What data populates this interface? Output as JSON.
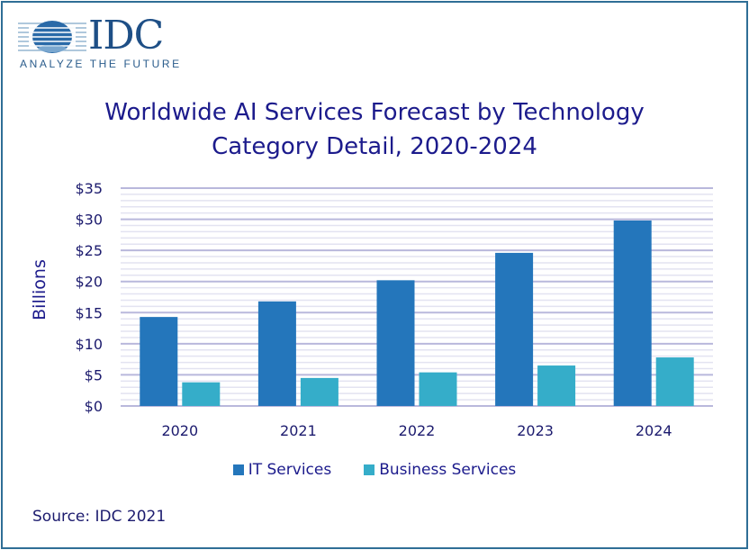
{
  "logo": {
    "brand": "IDC",
    "tagline": "ANALYZE THE FUTURE"
  },
  "colors": {
    "it_services": "#2476bb",
    "business_services": "#35adc9",
    "major_grid": "#b9b8dc",
    "minor_grid": "#e3e3f1",
    "text": "#1c1b8c",
    "border": "#2f6e96"
  },
  "chart_data": {
    "type": "bar",
    "title": "Worldwide AI Services Forecast by Technology Category Detail, 2020-2024",
    "title_lines": [
      "Worldwide AI Services Forecast by Technology",
      "Category Detail, 2020-2024"
    ],
    "xlabel": "",
    "ylabel": "Billions",
    "categories": [
      "2020",
      "2021",
      "2022",
      "2023",
      "2024"
    ],
    "series": [
      {
        "name": "IT Services",
        "values": [
          14.3,
          16.8,
          20.2,
          24.6,
          29.8
        ]
      },
      {
        "name": "Business Services",
        "values": [
          3.8,
          4.5,
          5.4,
          6.5,
          7.8
        ]
      }
    ],
    "ylim": [
      0,
      35
    ],
    "yticks": [
      0,
      5,
      10,
      15,
      20,
      25,
      30,
      35
    ],
    "ytick_labels": [
      "$0",
      "$5",
      "$10",
      "$15",
      "$20",
      "$25",
      "$30",
      "$35"
    ],
    "minor_tick_step": 1,
    "grid": true,
    "legend_position": "bottom"
  },
  "source": "Source: IDC 2021"
}
